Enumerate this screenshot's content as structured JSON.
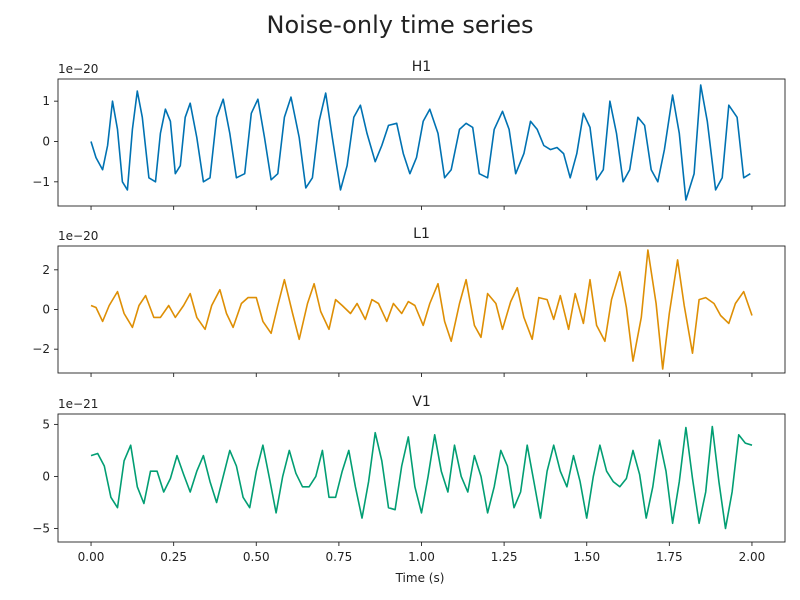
{
  "figure": {
    "title": "Noise-only time series",
    "xlabel": "Time (s)"
  },
  "chart_data": [
    {
      "type": "line",
      "title": "H1",
      "offset_label": "1e−20",
      "xlim": [
        -0.1,
        2.1
      ],
      "ylim": [
        -1.6,
        1.55
      ],
      "xticks": [
        0.0,
        0.25,
        0.5,
        0.75,
        1.0,
        1.25,
        1.5,
        1.75,
        2.0
      ],
      "xtick_labels": [
        "",
        "",
        "",
        "",
        "",
        "",
        "",
        "",
        ""
      ],
      "yticks": [
        -1,
        0,
        1
      ],
      "ytick_labels": [
        "−1",
        "0",
        "1"
      ],
      "color": "#0072b2",
      "series": [
        {
          "x": [
            0.0,
            0.015,
            0.035,
            0.05,
            0.065,
            0.08,
            0.095,
            0.11,
            0.125,
            0.14,
            0.155,
            0.175,
            0.195,
            0.21,
            0.225,
            0.24,
            0.255,
            0.27,
            0.285,
            0.3,
            0.32,
            0.34,
            0.36,
            0.38,
            0.4,
            0.42,
            0.44,
            0.465,
            0.485,
            0.505,
            0.525,
            0.545,
            0.565,
            0.585,
            0.605,
            0.63,
            0.65,
            0.67,
            0.69,
            0.71,
            0.73,
            0.755,
            0.775,
            0.795,
            0.815,
            0.835,
            0.86,
            0.88,
            0.9,
            0.925,
            0.945,
            0.965,
            0.985,
            1.005,
            1.025,
            1.05,
            1.07,
            1.09,
            1.115,
            1.135,
            1.155,
            1.175,
            1.2,
            1.22,
            1.245,
            1.265,
            1.285,
            1.31,
            1.33,
            1.35,
            1.37,
            1.39,
            1.41,
            1.43,
            1.45,
            1.47,
            1.49,
            1.51,
            1.53,
            1.55,
            1.57,
            1.59,
            1.61,
            1.63,
            1.655,
            1.675,
            1.695,
            1.715,
            1.735,
            1.76,
            1.78,
            1.8,
            1.825,
            1.845,
            1.865,
            1.89,
            1.91,
            1.93,
            1.955,
            1.975,
            1.995
          ],
          "y": [
            0.0,
            -0.4,
            -0.7,
            -0.1,
            1.0,
            0.3,
            -1.0,
            -1.2,
            0.3,
            1.25,
            0.6,
            -0.9,
            -1.0,
            0.2,
            0.8,
            0.5,
            -0.8,
            -0.6,
            0.6,
            0.95,
            0.1,
            -1.0,
            -0.9,
            0.6,
            1.05,
            0.2,
            -0.9,
            -0.8,
            0.7,
            1.05,
            0.1,
            -0.95,
            -0.8,
            0.6,
            1.1,
            0.1,
            -1.15,
            -0.9,
            0.5,
            1.2,
            0.1,
            -1.2,
            -0.6,
            0.6,
            0.9,
            0.2,
            -0.5,
            -0.1,
            0.4,
            0.45,
            -0.3,
            -0.8,
            -0.4,
            0.5,
            0.8,
            0.2,
            -0.9,
            -0.7,
            0.3,
            0.45,
            0.35,
            -0.8,
            -0.9,
            0.3,
            0.75,
            0.3,
            -0.8,
            -0.3,
            0.5,
            0.3,
            -0.1,
            -0.2,
            -0.15,
            -0.3,
            -0.9,
            -0.3,
            0.7,
            0.35,
            -0.95,
            -0.7,
            1.0,
            0.2,
            -1.0,
            -0.7,
            0.6,
            0.4,
            -0.7,
            -1.0,
            -0.2,
            1.15,
            0.2,
            -1.45,
            -0.8,
            1.4,
            0.5,
            -1.2,
            -0.9,
            0.9,
            0.6,
            -0.9,
            -0.8
          ]
        }
      ]
    },
    {
      "type": "line",
      "title": "L1",
      "offset_label": "1e−20",
      "xlim": [
        -0.1,
        2.1
      ],
      "ylim": [
        -3.2,
        3.2
      ],
      "xticks": [
        0.0,
        0.25,
        0.5,
        0.75,
        1.0,
        1.25,
        1.5,
        1.75,
        2.0
      ],
      "xtick_labels": [
        "",
        "",
        "",
        "",
        "",
        "",
        "",
        "",
        ""
      ],
      "yticks": [
        -2,
        0,
        2
      ],
      "ytick_labels": [
        "−2",
        "0",
        "2"
      ],
      "color": "#de8f05",
      "series": [
        {
          "x": [
            0.0,
            0.015,
            0.035,
            0.055,
            0.08,
            0.1,
            0.125,
            0.145,
            0.165,
            0.19,
            0.21,
            0.235,
            0.255,
            0.28,
            0.3,
            0.32,
            0.345,
            0.365,
            0.39,
            0.41,
            0.43,
            0.455,
            0.475,
            0.5,
            0.52,
            0.545,
            0.565,
            0.585,
            0.61,
            0.63,
            0.655,
            0.675,
            0.695,
            0.72,
            0.74,
            0.76,
            0.785,
            0.805,
            0.83,
            0.85,
            0.87,
            0.895,
            0.915,
            0.94,
            0.96,
            0.98,
            1.005,
            1.025,
            1.05,
            1.07,
            1.09,
            1.115,
            1.135,
            1.16,
            1.18,
            1.2,
            1.225,
            1.245,
            1.27,
            1.29,
            1.31,
            1.335,
            1.355,
            1.38,
            1.4,
            1.42,
            1.445,
            1.465,
            1.49,
            1.51,
            1.53,
            1.555,
            1.575,
            1.6,
            1.62,
            1.64,
            1.665,
            1.685,
            1.71,
            1.73,
            1.75,
            1.775,
            1.795,
            1.82,
            1.84,
            1.86,
            1.885,
            1.905,
            1.93,
            1.95,
            1.975,
            2.0
          ],
          "y": [
            0.2,
            0.1,
            -0.6,
            0.2,
            0.9,
            -0.2,
            -0.9,
            0.2,
            0.7,
            -0.4,
            -0.4,
            0.2,
            -0.4,
            0.2,
            0.8,
            -0.4,
            -1.0,
            0.2,
            1.0,
            -0.2,
            -0.9,
            0.3,
            0.6,
            0.6,
            -0.6,
            -1.2,
            0.2,
            1.5,
            -0.2,
            -1.5,
            0.3,
            1.3,
            -0.1,
            -1.0,
            0.5,
            0.2,
            -0.2,
            0.3,
            -0.5,
            0.5,
            0.3,
            -0.6,
            0.3,
            -0.2,
            0.4,
            0.2,
            -0.8,
            0.3,
            1.3,
            -0.6,
            -1.6,
            0.3,
            1.5,
            -0.8,
            -1.4,
            0.8,
            0.3,
            -1.0,
            0.4,
            1.1,
            -0.4,
            -1.5,
            0.6,
            0.5,
            -0.5,
            0.7,
            -1.0,
            0.8,
            -0.7,
            1.5,
            -0.8,
            -1.6,
            0.5,
            1.9,
            0.1,
            -2.6,
            -0.4,
            3.0,
            0.3,
            -3.0,
            -0.2,
            2.5,
            0.2,
            -2.2,
            0.5,
            0.6,
            0.3,
            -0.3,
            -0.7,
            0.3,
            0.9,
            -0.3
          ]
        }
      ]
    },
    {
      "type": "line",
      "title": "V1",
      "offset_label": "1e−21",
      "xlim": [
        -0.1,
        2.1
      ],
      "ylim": [
        -6.3,
        6.0
      ],
      "xticks": [
        0.0,
        0.25,
        0.5,
        0.75,
        1.0,
        1.25,
        1.5,
        1.75,
        2.0
      ],
      "xtick_labels": [
        "0.00",
        "0.25",
        "0.50",
        "0.75",
        "1.00",
        "1.25",
        "1.50",
        "1.75",
        "2.00"
      ],
      "yticks": [
        -5,
        0,
        5
      ],
      "ytick_labels": [
        "−5",
        "0",
        "5"
      ],
      "color": "#029e73",
      "series": [
        {
          "x": [
            0.0,
            0.02,
            0.04,
            0.06,
            0.08,
            0.1,
            0.12,
            0.14,
            0.16,
            0.18,
            0.2,
            0.22,
            0.24,
            0.26,
            0.28,
            0.3,
            0.32,
            0.34,
            0.36,
            0.38,
            0.4,
            0.42,
            0.44,
            0.46,
            0.48,
            0.5,
            0.52,
            0.54,
            0.56,
            0.58,
            0.6,
            0.62,
            0.64,
            0.66,
            0.68,
            0.7,
            0.72,
            0.74,
            0.76,
            0.78,
            0.8,
            0.82,
            0.84,
            0.86,
            0.88,
            0.9,
            0.92,
            0.94,
            0.96,
            0.98,
            1.0,
            1.02,
            1.04,
            1.06,
            1.08,
            1.1,
            1.12,
            1.14,
            1.16,
            1.18,
            1.2,
            1.22,
            1.24,
            1.26,
            1.28,
            1.3,
            1.32,
            1.34,
            1.36,
            1.38,
            1.4,
            1.42,
            1.44,
            1.46,
            1.48,
            1.5,
            1.52,
            1.54,
            1.56,
            1.58,
            1.6,
            1.62,
            1.64,
            1.66,
            1.68,
            1.7,
            1.72,
            1.74,
            1.76,
            1.78,
            1.8,
            1.82,
            1.84,
            1.86,
            1.88,
            1.9,
            1.92,
            1.94,
            1.96,
            1.98,
            2.0
          ],
          "y": [
            2.0,
            2.2,
            1.0,
            -2.0,
            -3.0,
            1.5,
            3.0,
            -1.0,
            -2.6,
            0.5,
            0.5,
            -1.5,
            -0.2,
            2.0,
            0.2,
            -1.5,
            0.5,
            2.0,
            -0.5,
            -2.5,
            0.0,
            2.5,
            1.0,
            -2.0,
            -3.0,
            0.5,
            3.0,
            -0.2,
            -3.5,
            0.0,
            2.5,
            0.3,
            -1.0,
            -1.0,
            0.0,
            2.5,
            -2.0,
            -2.0,
            0.5,
            2.5,
            -1.0,
            -4.0,
            -0.5,
            4.2,
            1.5,
            -3.0,
            -3.2,
            1.0,
            3.8,
            -1.0,
            -3.5,
            0.0,
            4.0,
            0.5,
            -1.5,
            3.0,
            0.0,
            -1.5,
            2.0,
            0.0,
            -3.5,
            -1.0,
            2.5,
            1.0,
            -3.0,
            -1.5,
            3.0,
            -0.5,
            -4.0,
            0.5,
            3.0,
            0.5,
            -1.0,
            2.0,
            -0.5,
            -4.0,
            0.0,
            3.0,
            0.5,
            -0.5,
            -1.0,
            -0.2,
            2.5,
            0.2,
            -4.0,
            -1.0,
            3.5,
            0.5,
            -4.5,
            -0.5,
            4.7,
            -0.2,
            -4.5,
            -1.5,
            4.8,
            -0.5,
            -5.0,
            -1.5,
            4.0,
            3.2,
            3.0
          ]
        }
      ]
    }
  ]
}
